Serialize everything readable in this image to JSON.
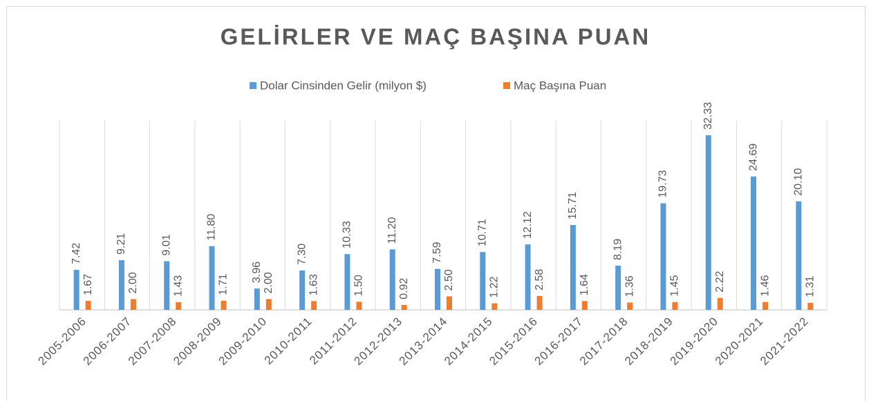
{
  "chart_data": {
    "type": "bar",
    "title": "GELİRLER VE MAÇ BAŞINA PUAN",
    "categories": [
      "2005-2006",
      "2006-2007",
      "2007-2008",
      "2008-2009",
      "2009-2010",
      "2010-2011",
      "2011-2012",
      "2012-2013",
      "2013-2014",
      "2014-2015",
      "2015-2016",
      "2016-2017",
      "2017-2018",
      "2018-2019",
      "2019-2020",
      "2020-2021",
      "2021-2022"
    ],
    "series": [
      {
        "name": "Dolar Cinsinden Gelir (milyon $)",
        "color": "#5b9bd5",
        "values": [
          7.42,
          9.21,
          9.01,
          11.8,
          3.96,
          7.3,
          10.33,
          11.2,
          7.59,
          10.71,
          12.12,
          15.71,
          8.19,
          19.73,
          32.33,
          24.69,
          20.1
        ],
        "value_labels": [
          "7.42",
          "9.21",
          "9.01",
          "11.80",
          "3.96",
          "7.30",
          "10.33",
          "11.20",
          "7.59",
          "10.71",
          "12.12",
          "15.71",
          "8.19",
          "19.73",
          "32.33",
          "24.69",
          "20.10"
        ]
      },
      {
        "name": "Maç Başına Puan",
        "color": "#ed7d31",
        "values": [
          1.67,
          2,
          1.43,
          1.71,
          2,
          1.63,
          1.5,
          0.92,
          2.5,
          1.22,
          2.58,
          1.64,
          1.36,
          1.45,
          2.22,
          1.46,
          1.31
        ],
        "value_labels": [
          "1.67",
          "2.00",
          "1.43",
          "1.71",
          "2.00",
          "1.63",
          "1.50",
          "0.92",
          "2.50",
          "1.22",
          "2.58",
          "1.64",
          "1.36",
          "1.45",
          "2.22",
          "1.46",
          "1.31"
        ]
      }
    ],
    "ylim": [
      0,
      35
    ],
    "legend": "top"
  }
}
